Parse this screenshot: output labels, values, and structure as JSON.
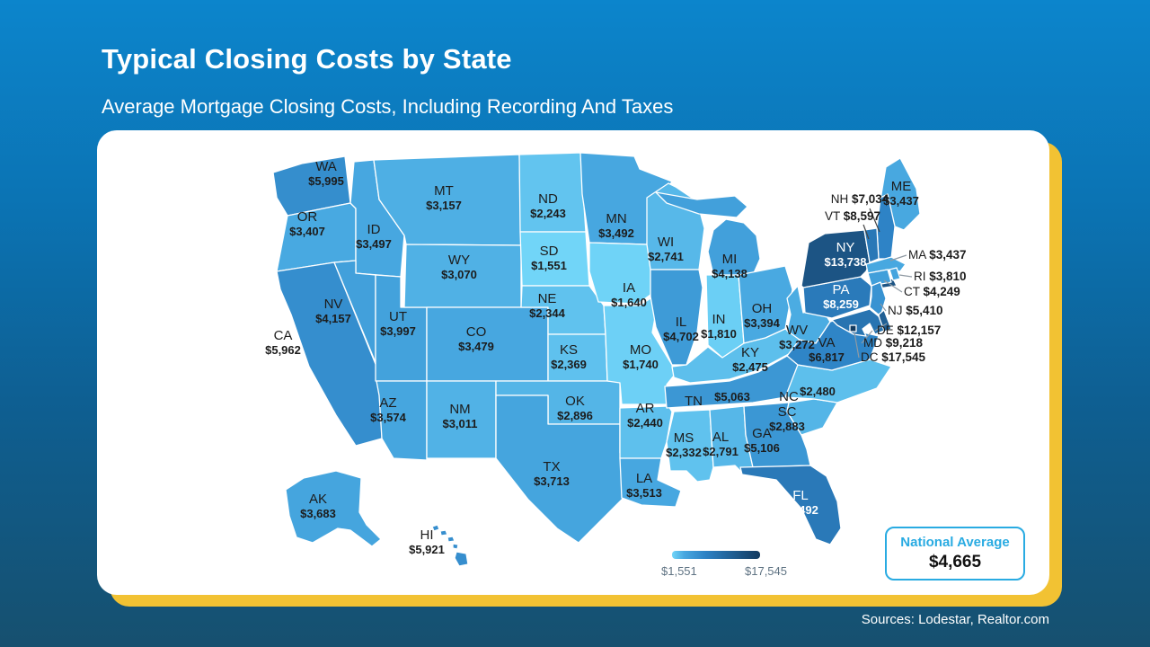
{
  "slide": {
    "title": "Typical Closing Costs by State",
    "subtitle": "Average Mortgage Closing Costs, Including Recording And Taxes",
    "source": "Sources: Lodestar, Realtor.com"
  },
  "national_average": {
    "label": "National Average",
    "value": "$4,665"
  },
  "legend": {
    "min": "$1,551",
    "max": "$17,545"
  },
  "colors": {
    "scale_low": "#71d5f8",
    "scale_mid": "#2d82c5",
    "scale_high": "#123a5f",
    "accent_yellow": "#f2c233",
    "accent_cyan": "#29abe2",
    "background_top": "#0c85cc",
    "background_bottom": "#16506f"
  },
  "chart_data": {
    "type": "heatmap",
    "subtype": "us-choropleth-map",
    "title": "Typical Closing Costs by State",
    "subtitle": "Average Mortgage Closing Costs, Including Recording And Taxes",
    "unit": "USD",
    "value_min": 1551,
    "value_max": 17545,
    "national_average": 4665,
    "legend_position": "bottom-center",
    "states": [
      {
        "abbr": "WA",
        "value": 5995
      },
      {
        "abbr": "OR",
        "value": 3407
      },
      {
        "abbr": "CA",
        "value": 5962
      },
      {
        "abbr": "ID",
        "value": 3497
      },
      {
        "abbr": "NV",
        "value": 4157
      },
      {
        "abbr": "UT",
        "value": 3997
      },
      {
        "abbr": "AZ",
        "value": 3574
      },
      {
        "abbr": "MT",
        "value": 3157
      },
      {
        "abbr": "WY",
        "value": 3070
      },
      {
        "abbr": "CO",
        "value": 3479
      },
      {
        "abbr": "NM",
        "value": 3011
      },
      {
        "abbr": "ND",
        "value": 2243
      },
      {
        "abbr": "SD",
        "value": 1551
      },
      {
        "abbr": "NE",
        "value": 2344
      },
      {
        "abbr": "KS",
        "value": 2369
      },
      {
        "abbr": "OK",
        "value": 2896
      },
      {
        "abbr": "TX",
        "value": 3713
      },
      {
        "abbr": "MN",
        "value": 3492
      },
      {
        "abbr": "IA",
        "value": 1640
      },
      {
        "abbr": "MO",
        "value": 1740
      },
      {
        "abbr": "AR",
        "value": 2440
      },
      {
        "abbr": "LA",
        "value": 3513
      },
      {
        "abbr": "WI",
        "value": 2741
      },
      {
        "abbr": "IL",
        "value": 4702
      },
      {
        "abbr": "IN",
        "value": 1810
      },
      {
        "abbr": "MI",
        "value": 4138
      },
      {
        "abbr": "OH",
        "value": 3394
      },
      {
        "abbr": "KY",
        "value": 2475
      },
      {
        "abbr": "TN",
        "value": 5063
      },
      {
        "abbr": "MS",
        "value": 2332
      },
      {
        "abbr": "AL",
        "value": 2791
      },
      {
        "abbr": "GA",
        "value": 5106
      },
      {
        "abbr": "FL",
        "value": 8492
      },
      {
        "abbr": "SC",
        "value": 2883
      },
      {
        "abbr": "NC",
        "value": 2480
      },
      {
        "abbr": "VA",
        "value": 6817
      },
      {
        "abbr": "WV",
        "value": 3272
      },
      {
        "abbr": "PA",
        "value": 8259
      },
      {
        "abbr": "NY",
        "value": 13738
      },
      {
        "abbr": "ME",
        "value": 3437
      },
      {
        "abbr": "NH",
        "value": 7034
      },
      {
        "abbr": "VT",
        "value": 8597
      },
      {
        "abbr": "MA",
        "value": 3437
      },
      {
        "abbr": "RI",
        "value": 3810
      },
      {
        "abbr": "CT",
        "value": 4249
      },
      {
        "abbr": "NJ",
        "value": 5410
      },
      {
        "abbr": "DE",
        "value": 12157
      },
      {
        "abbr": "MD",
        "value": 9218
      },
      {
        "abbr": "DC",
        "value": 17545
      },
      {
        "abbr": "AK",
        "value": 3683
      },
      {
        "abbr": "HI",
        "value": 5921
      }
    ]
  }
}
